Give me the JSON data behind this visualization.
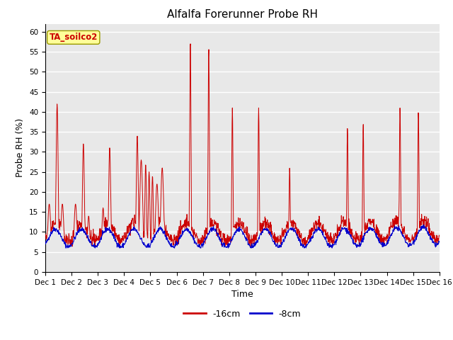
{
  "title": "Alfalfa Forerunner Probe RH",
  "ylabel": "Probe RH (%)",
  "xlabel": "Time",
  "ylim": [
    0,
    62
  ],
  "yticks": [
    0,
    5,
    10,
    15,
    20,
    25,
    30,
    35,
    40,
    45,
    50,
    55,
    60
  ],
  "xlim": [
    0,
    15
  ],
  "xtick_labels": [
    "Dec 1",
    "Dec 2",
    "Dec 3",
    "Dec 4",
    "Dec 5",
    "Dec 6",
    "Dec 7",
    "Dec 8",
    "Dec 9",
    "Dec 9",
    "Dec 10",
    "Dec 11",
    "Dec 12",
    "Dec 13",
    "Dec 14",
    "Dec 15",
    "Dec 16"
  ],
  "line_16cm_color": "#cc0000",
  "line_8cm_color": "#0000cc",
  "legend_label_16cm": "-16cm",
  "legend_label_8cm": "-8cm",
  "annotation_text": "TA_soilco2",
  "annotation_color": "#cc0000",
  "annotation_bg": "#ffff99",
  "background_color": "#e8e8e8",
  "grid_color": "#ffffff",
  "title_fontsize": 11,
  "axis_fontsize": 9,
  "tick_fontsize": 7.5
}
